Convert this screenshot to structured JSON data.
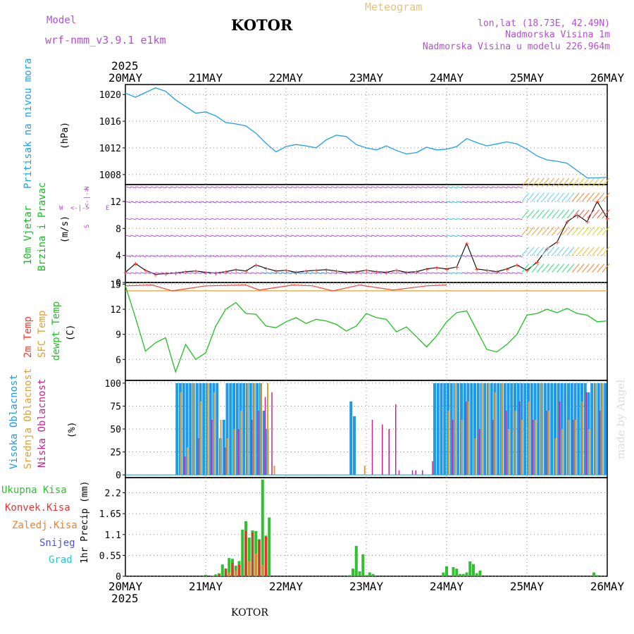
{
  "header": {
    "title": "Meteogram",
    "station": "KOTOR",
    "model_label": "Model",
    "model_name": "wrf-nmm_v3.9.1 e1km",
    "coords": "lon,lat (18.73E, 42.49N)",
    "elevation": "Nadmorska Visina 1m",
    "model_elevation": "Nadmorska Visina u modelu 226.964m",
    "year_top": "2025",
    "year_bottom": "2025",
    "footer_station": "KOTOR",
    "credit": "made by Angel"
  },
  "colors": {
    "title": "#e8c27a",
    "model": "#b050d0",
    "pressure": "#1ea0e8",
    "wind": "#10c020",
    "temp2m": "#f04030",
    "sfc": "#e0a030",
    "dewpt": "#20c020",
    "cloud_high": "#1e9ae8",
    "cloud_mid": "#e0a030",
    "cloud_low": "#d02090",
    "precip_total": "#30c030",
    "precip_conv": "#f03030",
    "precip_frozen": "#f08030",
    "snow": "#5050e0",
    "graupel": "#20c8c8",
    "grid": "#888888"
  },
  "x_axis": {
    "days": [
      "20MAY",
      "21MAY",
      "22MAY",
      "23MAY",
      "24MAY",
      "25MAY",
      "26MAY"
    ]
  },
  "panels": {
    "pressure": {
      "label1": "Pritisak na nivou mora",
      "unit": "(hPa)"
    },
    "wind": {
      "label1": "10m Vjetar",
      "label2": "Brzina i Pravac",
      "unit": "(m/s)",
      "compass": [
        "W",
        "E",
        "N",
        "S"
      ],
      "compass_glyph": "<-|->"
    },
    "temp": {
      "label_2m": "2m Temp",
      "label_sfc": "SFC Temp",
      "label_dew": "dewpt Temp",
      "unit": "(C)"
    },
    "cloud": {
      "label_high": "Visoka Oblacnost",
      "label_mid": "Srednja Oblacnost",
      "label_low": "Niska Oblacnost",
      "unit": "(%)"
    },
    "precip": {
      "label_total": "Ukupna Kisa",
      "label_conv": "Konvek.Kisa",
      "label_frozen": "Zaledj.Kisa",
      "label_snow": "Snijeg",
      "label_grad": "Grad",
      "unit": "1hr Precip (mm)"
    }
  },
  "chart_data": [
    {
      "type": "line",
      "panel": "pressure",
      "xlabel": "",
      "ylabel": "(hPa)",
      "yticks": [
        1008,
        1012,
        1016,
        1020
      ],
      "ylim": [
        1006.5,
        1021.5
      ],
      "x_unit": "hours since 20MAY 00",
      "series": [
        {
          "name": "Pritisak na nivou mora",
          "x": [
            0,
            3,
            6,
            9,
            12,
            15,
            18,
            21,
            24,
            27,
            30,
            33,
            36,
            39,
            42,
            45,
            48,
            51,
            54,
            57,
            60,
            63,
            66,
            69,
            72,
            75,
            78,
            81,
            84,
            87,
            90,
            93,
            96,
            99,
            102,
            105,
            108,
            111,
            114,
            117,
            120,
            123,
            126,
            129,
            132,
            135,
            138,
            141,
            144
          ],
          "values": [
            1020.2,
            1019.6,
            1020.3,
            1021.0,
            1020.5,
            1019.2,
            1018.2,
            1017.2,
            1017.4,
            1016.8,
            1015.8,
            1015.6,
            1015.3,
            1014.2,
            1012.7,
            1011.4,
            1012.2,
            1012.5,
            1012.3,
            1012.0,
            1013.2,
            1013.9,
            1013.7,
            1012.5,
            1012.0,
            1011.7,
            1012.3,
            1011.6,
            1011.1,
            1011.3,
            1012.1,
            1011.7,
            1011.8,
            1012.2,
            1013.4,
            1012.8,
            1012.3,
            1012.6,
            1012.9,
            1012.6,
            1011.8,
            1010.8,
            1010.2,
            1010.0,
            1009.7,
            1008.6,
            1007.5,
            1007.5,
            1007.6
          ]
        }
      ]
    },
    {
      "type": "line",
      "panel": "wind",
      "ylabel": "(m/s)",
      "yticks": [
        0,
        4,
        8,
        12
      ],
      "ylim": [
        0,
        14.5
      ],
      "x_unit": "hours since 20MAY 00",
      "series": [
        {
          "name": "10m Vjetar",
          "x": [
            0,
            3,
            6,
            9,
            12,
            15,
            18,
            21,
            24,
            27,
            30,
            33,
            36,
            39,
            42,
            45,
            48,
            51,
            54,
            57,
            60,
            63,
            66,
            69,
            72,
            75,
            78,
            81,
            84,
            87,
            90,
            93,
            96,
            99,
            102,
            105,
            108,
            111,
            114,
            117,
            120,
            123,
            126,
            129,
            132,
            135,
            138,
            141,
            144
          ],
          "values": [
            1.5,
            2.8,
            1.8,
            1.2,
            1.3,
            1.4,
            1.6,
            1.7,
            1.5,
            1.4,
            1.6,
            1.9,
            1.7,
            2.6,
            2.1,
            1.7,
            1.8,
            1.5,
            1.7,
            1.8,
            1.9,
            1.7,
            1.5,
            1.6,
            1.8,
            1.6,
            1.5,
            1.8,
            1.5,
            1.6,
            2.0,
            2.2,
            2.0,
            2.3,
            5.8,
            2.0,
            1.8,
            1.6,
            2.0,
            2.6,
            1.8,
            3.0,
            5.0,
            6.0,
            9.0,
            10.0,
            9.0,
            12.0,
            9.5
          ]
        }
      ]
    },
    {
      "type": "line",
      "panel": "temperature",
      "ylabel": "(C)",
      "yticks": [
        6,
        9,
        12,
        15
      ],
      "ylim": [
        3.5,
        15.2
      ],
      "x_unit": "hours since 20MAY 00",
      "series": [
        {
          "name": "2m Temp",
          "x": [
            0,
            8,
            14,
            24,
            36,
            40,
            50,
            56,
            62,
            70,
            80,
            90,
            96
          ],
          "values": [
            14.8,
            14.9,
            14.2,
            14.8,
            14.9,
            14.3,
            14.9,
            14.8,
            14.2,
            14.9,
            14.3,
            14.8,
            14.9
          ]
        },
        {
          "name": "SFC Temp",
          "x": [
            0,
            144
          ],
          "values": [
            14.2,
            14.2
          ]
        },
        {
          "name": "dewpt Temp",
          "x": [
            0,
            3,
            6,
            9,
            12,
            15,
            18,
            21,
            24,
            27,
            30,
            33,
            36,
            39,
            42,
            45,
            48,
            51,
            54,
            57,
            60,
            63,
            66,
            69,
            72,
            75,
            78,
            81,
            84,
            87,
            90,
            93,
            96,
            99,
            102,
            105,
            108,
            111,
            114,
            117,
            120,
            123,
            126,
            129,
            132,
            135,
            138,
            141,
            144
          ],
          "values": [
            14.8,
            11.0,
            7.0,
            8.0,
            8.6,
            4.5,
            7.8,
            6.0,
            6.8,
            10.0,
            12.0,
            12.8,
            11.5,
            11.4,
            10.0,
            9.8,
            10.5,
            11.0,
            10.3,
            10.8,
            10.6,
            10.2,
            9.4,
            10.0,
            11.5,
            11.0,
            10.8,
            9.3,
            9.9,
            8.7,
            7.5,
            8.8,
            10.5,
            11.6,
            11.8,
            9.5,
            7.2,
            6.9,
            7.8,
            9.0,
            11.3,
            11.5,
            12.0,
            11.6,
            12.1,
            11.5,
            11.3,
            10.5,
            10.6
          ]
        }
      ]
    },
    {
      "type": "bar",
      "panel": "cloud",
      "ylabel": "(%)",
      "yticks": [
        0,
        25,
        50,
        75,
        100
      ],
      "ylim": [
        -3,
        103
      ],
      "x_unit": "hours since 20MAY 00",
      "series": [
        {
          "name": "Visoka Oblacnost",
          "x": [
            15,
            16,
            17,
            18,
            19,
            20,
            21,
            22,
            23,
            24,
            25,
            26,
            27,
            28,
            29,
            30,
            31,
            32,
            33,
            34,
            35,
            36,
            37,
            38,
            39,
            40,
            41,
            42,
            67,
            68,
            69,
            70,
            92,
            93,
            94,
            95,
            96,
            97,
            98,
            99,
            100,
            101,
            102,
            103,
            104,
            105,
            106,
            107,
            108,
            109,
            110,
            111,
            112,
            113,
            114,
            115,
            116,
            117,
            118,
            119,
            120,
            121,
            122,
            123,
            124,
            125,
            126,
            127,
            128,
            129,
            130,
            131,
            132,
            133,
            134,
            135,
            136,
            137,
            138,
            139,
            140,
            141,
            142,
            143
          ],
          "values": [
            100,
            100,
            100,
            100,
            100,
            100,
            100,
            100,
            100,
            100,
            100,
            100,
            100,
            40,
            60,
            100,
            100,
            100,
            100,
            100,
            100,
            100,
            100,
            100,
            100,
            100,
            70,
            50,
            80,
            64,
            0,
            0,
            100,
            100,
            100,
            100,
            100,
            100,
            100,
            100,
            100,
            100,
            100,
            100,
            100,
            100,
            100,
            100,
            100,
            100,
            100,
            100,
            100,
            100,
            100,
            100,
            100,
            100,
            100,
            100,
            100,
            100,
            100,
            100,
            100,
            100,
            100,
            100,
            100,
            100,
            100,
            100,
            100,
            100,
            100,
            100,
            100,
            100,
            90,
            100,
            100,
            100,
            100,
            100
          ]
        },
        {
          "name": "Srednja Oblacnost",
          "x": [
            16,
            18,
            20,
            22,
            24,
            26,
            28,
            30,
            32,
            34,
            36,
            38,
            40,
            42,
            44,
            71,
            96,
            98,
            100,
            102,
            104,
            106,
            108,
            110,
            112,
            114,
            116,
            118,
            120,
            122,
            124,
            126,
            128,
            130,
            132,
            134,
            136,
            138,
            140,
            142
          ],
          "values": [
            90,
            30,
            100,
            80,
            100,
            90,
            60,
            40,
            50,
            70,
            100,
            100,
            100,
            100,
            10,
            10,
            70,
            100,
            60,
            80,
            40,
            100,
            100,
            90,
            100,
            50,
            70,
            60,
            80,
            60,
            100,
            70,
            40,
            50,
            60,
            60,
            80,
            50,
            100,
            100
          ]
        },
        {
          "name": "Niska Oblacnost",
          "x": [
            17,
            21,
            25,
            29,
            33,
            37,
            39,
            41,
            43,
            73,
            76,
            78,
            80,
            81,
            85,
            86,
            88,
            91,
            97,
            101,
            105,
            109,
            113,
            117,
            121,
            125,
            129,
            133,
            137,
            141
          ],
          "values": [
            20,
            40,
            60,
            30,
            50,
            60,
            70,
            85,
            90,
            60,
            55,
            50,
            77,
            5,
            5,
            5,
            5,
            15,
            60,
            80,
            50,
            60,
            70,
            80,
            60,
            70,
            80,
            60,
            90,
            70
          ]
        }
      ]
    },
    {
      "type": "bar",
      "panel": "precipitation",
      "ylabel": "1hr Precip (mm)",
      "yticks": [
        0,
        0.55,
        1.1,
        1.65,
        2.2
      ],
      "ylim": [
        0,
        2.6
      ],
      "x_unit": "hours since 20MAY 00",
      "series": [
        {
          "name": "Ukupna Kisa",
          "x": [
            24,
            27,
            28,
            29,
            30,
            31,
            32,
            33,
            34,
            35,
            36,
            37,
            38,
            39,
            40,
            41,
            42,
            43,
            44,
            45,
            48,
            67,
            68,
            69,
            70,
            71,
            72,
            73,
            74,
            75,
            76,
            95,
            96,
            97,
            98,
            99,
            100,
            101,
            102,
            103,
            104,
            105,
            106,
            136,
            137,
            138,
            139,
            140,
            141,
            142,
            143
          ],
          "values": [
            0.04,
            0.05,
            0.08,
            0.31,
            0.2,
            0.48,
            0.46,
            0.28,
            0.4,
            1.23,
            1.45,
            1.02,
            1.21,
            1.19,
            0.98,
            2.55,
            1.07,
            1.55,
            0.0,
            0.0,
            0.0,
            0.03,
            0.2,
            0.8,
            0.13,
            0.58,
            0.03,
            0.1,
            0.06,
            0.0,
            0.0,
            0.1,
            0.26,
            0.0,
            0.24,
            0.2,
            0.06,
            0.06,
            0.1,
            0.39,
            0.32,
            0.08,
            0.15,
            0.0,
            0.0,
            0.0,
            0.0,
            0.1,
            0.03,
            0.0,
            0.0
          ]
        },
        {
          "name": "Konvek.Kisa",
          "x": [
            28,
            30,
            32,
            34,
            36,
            38,
            40,
            42
          ],
          "values": [
            0.05,
            0.2,
            0.35,
            0.3,
            1.2,
            1.15,
            0.95,
            1.05
          ]
        },
        {
          "name": "Zaledj.Kisa",
          "x": [
            26,
            31,
            33,
            37,
            39,
            41
          ],
          "values": [
            0.02,
            0.1,
            0.15,
            0.4,
            0.6,
            0.3
          ]
        },
        {
          "name": "Snijeg",
          "x": [],
          "values": []
        },
        {
          "name": "Grad",
          "x": [],
          "values": []
        }
      ]
    }
  ]
}
